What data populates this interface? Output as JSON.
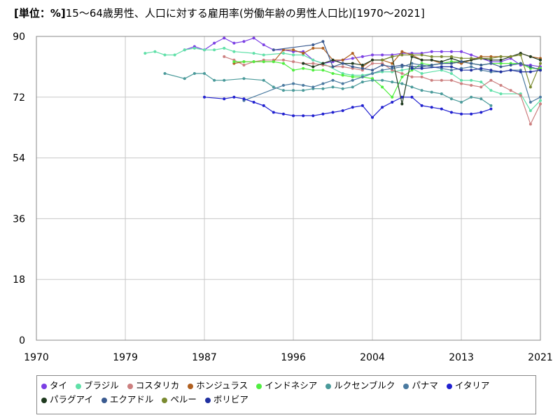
{
  "chart_data": {
    "type": "line",
    "unit": "[単位：%]",
    "title": "15～64歳男性、人口に対する雇用率(労働年齢の男性人口比)[1970～2021]",
    "xlim": [
      1970,
      2021
    ],
    "ylim": [
      0,
      90
    ],
    "x_ticks": [
      "1970",
      "1979",
      "1987",
      "1996",
      "2004",
      "2013",
      "2021"
    ],
    "y_ticks": [
      "0",
      "18",
      "36",
      "54",
      "72",
      "90"
    ],
    "grid": true,
    "legend_position": "bottom",
    "series": [
      {
        "name": "タイ",
        "color": "#7b3fe4",
        "x": [
          1985,
          1986,
          1987,
          1988,
          1989,
          1990,
          1991,
          1992,
          1993,
          1994,
          1995,
          1996,
          1997,
          1998,
          1999,
          2000,
          2001,
          2002,
          2003,
          2004,
          2005,
          2006,
          2007,
          2008,
          2009,
          2010,
          2011,
          2012,
          2013,
          2014,
          2015,
          2016,
          2017,
          2018,
          2019,
          2020,
          2021
        ],
        "values": [
          86,
          87,
          86,
          88,
          89.5,
          88,
          88.5,
          89.5,
          87.5,
          86,
          86,
          85.5,
          85.5,
          83,
          82,
          82.5,
          83,
          83.5,
          84,
          84.5,
          84.5,
          84.5,
          85,
          85,
          85,
          85.5,
          85.5,
          85.5,
          85.5,
          84.5,
          83.5,
          82.5,
          82.5,
          83.5,
          81.5,
          81.5,
          81
        ]
      },
      {
        "name": "ブラジル",
        "color": "#60e0a8",
        "x": [
          1981,
          1982,
          1983,
          1984,
          1985,
          1986,
          1987,
          1988,
          1989,
          1990,
          1992,
          1993,
          1995,
          1996,
          1997,
          1998,
          1999,
          2001,
          2002,
          2003,
          2004,
          2005,
          2006,
          2007,
          2008,
          2009,
          2011,
          2012,
          2013,
          2014,
          2015,
          2016,
          2017,
          2019,
          2020,
          2021
        ],
        "values": [
          85,
          85.5,
          84.5,
          84.5,
          86,
          86.5,
          86,
          86,
          86.5,
          85.5,
          85,
          84.5,
          85,
          84.5,
          84.5,
          83,
          82,
          79,
          78.5,
          78.5,
          79,
          79.5,
          79.5,
          80,
          80.5,
          79,
          80,
          79,
          77,
          77,
          76.5,
          74,
          73,
          73,
          68,
          71
        ]
      },
      {
        "name": "コスタリカ",
        "color": "#cc7f7f",
        "x": [
          1989,
          1990,
          1991,
          1992,
          1993,
          1994,
          1995,
          1996,
          1997,
          1998,
          1999,
          2000,
          2001,
          2002,
          2003,
          2004,
          2005,
          2006,
          2007,
          2008,
          2009,
          2010,
          2011,
          2012,
          2013,
          2014,
          2015,
          2016,
          2017,
          2018,
          2019,
          2020,
          2021
        ],
        "values": [
          84,
          83,
          81.5,
          82.5,
          83,
          83,
          83,
          82.5,
          82,
          82,
          81.5,
          81,
          81,
          80.5,
          80,
          82,
          82,
          80,
          79,
          78,
          78,
          77,
          77,
          77,
          76,
          75.5,
          75,
          77,
          75.5,
          74,
          72.5,
          64,
          70
        ]
      },
      {
        "name": "ホンジュラス",
        "color": "#b06020",
        "x": [
          1990,
          1991,
          1992,
          1993,
          1994,
          1995,
          1996,
          1997,
          1998,
          1999,
          2000,
          2001,
          2002,
          2003,
          2004,
          2005,
          2006,
          2007,
          2008,
          2009,
          2010,
          2011,
          2012,
          2013,
          2014,
          2015,
          2016,
          2017,
          2018,
          2019,
          2020,
          2021
        ],
        "values": [
          82,
          82.5,
          82.5,
          82.5,
          82.5,
          86,
          86,
          85,
          86.5,
          86.5,
          83,
          83,
          85,
          81,
          83,
          83,
          82,
          85.5,
          84.5,
          83,
          83,
          82,
          82.5,
          82,
          83,
          84,
          84,
          84,
          84,
          85,
          84,
          83.5
        ]
      },
      {
        "name": "インドネシア",
        "color": "#50ee40",
        "x": [
          1990,
          1991,
          1992,
          1993,
          1994,
          1995,
          1996,
          1997,
          1998,
          1999,
          2000,
          2001,
          2002,
          2003,
          2004,
          2005,
          2006,
          2007,
          2008,
          2009,
          2010,
          2011,
          2012,
          2013,
          2014,
          2015,
          2016,
          2017,
          2018,
          2019,
          2020,
          2021
        ],
        "values": [
          82.5,
          82.5,
          82.5,
          82.5,
          82.5,
          82,
          80,
          80.5,
          80,
          80,
          79,
          78.5,
          78,
          78,
          77.5,
          75,
          72,
          78,
          80,
          82,
          81.5,
          82,
          82.5,
          82.5,
          82,
          81.5,
          82,
          82,
          82,
          82,
          80.5,
          80.5
        ]
      },
      {
        "name": "ルクセンブルク",
        "color": "#4a9a9a",
        "x": [
          1983,
          1985,
          1986,
          1987,
          1988,
          1989,
          1991,
          1993,
          1994,
          1995,
          1996,
          1997,
          1998,
          1999,
          2000,
          2001,
          2002,
          2003,
          2004,
          2005,
          2006,
          2007,
          2008,
          2009,
          2010,
          2011,
          2012,
          2013,
          2014,
          2015,
          2016
        ],
        "values": [
          79,
          77.5,
          79,
          79,
          77,
          77,
          77.5,
          77,
          75,
          74,
          74,
          74,
          74.5,
          74.5,
          75,
          74.5,
          75,
          76.5,
          77,
          77,
          76.5,
          76,
          75,
          74,
          73.5,
          73,
          71.5,
          70.5,
          72,
          71.5,
          69.5
        ]
      },
      {
        "name": "パナマ",
        "color": "#4a7aa0",
        "x": [
          1991,
          1995,
          1996,
          1997,
          1998,
          1999,
          2000,
          2001,
          2002,
          2003,
          2004,
          2005,
          2006,
          2007,
          2008,
          2009,
          2010,
          2011,
          2012,
          2013,
          2014,
          2015,
          2016,
          2017,
          2018,
          2019,
          2020,
          2021
        ],
        "values": [
          71,
          75.5,
          76,
          75.5,
          75,
          76,
          77,
          76,
          77,
          78,
          79,
          80,
          80.5,
          81,
          82,
          81.5,
          81,
          80.5,
          80,
          80.5,
          81,
          80,
          79.5,
          79.5,
          80,
          80,
          70.5,
          72
        ]
      },
      {
        "name": "イタリア",
        "color": "#2020d0",
        "x": [
          1987,
          1989,
          1990,
          1991,
          1992,
          1993,
          1994,
          1995,
          1996,
          1997,
          1998,
          1999,
          2000,
          2001,
          2002,
          2003,
          2004,
          2005,
          2006,
          2007,
          2008,
          2009,
          2010,
          2011,
          2012,
          2013,
          2014,
          2015,
          2016
        ],
        "values": [
          72,
          71.5,
          72,
          71.5,
          70.5,
          69.5,
          67.5,
          67,
          66.5,
          66.5,
          66.5,
          67,
          67.5,
          68,
          69,
          69.5,
          66,
          69,
          70.5,
          72,
          72,
          69.5,
          69,
          68.5,
          67.5,
          67,
          67,
          67.5,
          68.5
        ]
      },
      {
        "name": "パラグアイ",
        "color": "#1f3a1f",
        "x": [
          1997,
          1998,
          1999,
          2000,
          2001,
          2002,
          2003,
          2004,
          2005,
          2006,
          2007,
          2008,
          2009,
          2010,
          2011,
          2012,
          2013,
          2014,
          2015,
          2016,
          2017,
          2018,
          2019,
          2020,
          2021
        ],
        "values": [
          82,
          81,
          82,
          83,
          82,
          82,
          81.5,
          83,
          83,
          84,
          70,
          84,
          83,
          83,
          82.5,
          83.5,
          82.5,
          83,
          83.5,
          83,
          83,
          84,
          85,
          84,
          83
        ]
      },
      {
        "name": "エクアドル",
        "color": "#3a5a90",
        "x": [
          1994,
          1998,
          1999,
          2000,
          2001,
          2002,
          2003,
          2004,
          2005,
          2006,
          2007,
          2008,
          2009,
          2010,
          2011,
          2012,
          2013,
          2014,
          2015,
          2016,
          2017,
          2018,
          2019,
          2020,
          2021
        ],
        "values": [
          86,
          87.5,
          88.5,
          81,
          82,
          81,
          80.5,
          80,
          81.5,
          81,
          81.5,
          81,
          81,
          81.5,
          82,
          82,
          82.5,
          82,
          81.5,
          82,
          81,
          81.5,
          82,
          81,
          80
        ]
      },
      {
        "name": "ペルー",
        "color": "#7a8a30",
        "x": [
          2005,
          2006,
          2007,
          2008,
          2009,
          2010,
          2011,
          2012,
          2013,
          2014,
          2015,
          2016,
          2017,
          2018,
          2019,
          2020,
          2021
        ],
        "values": [
          83,
          84,
          84.5,
          84.5,
          84.5,
          84,
          84,
          84,
          83.5,
          83.5,
          83.5,
          83.5,
          84,
          84,
          84.5,
          75,
          82
        ]
      },
      {
        "name": "ボリビア",
        "color": "#2030a0",
        "x": [
          2008,
          2009,
          2011,
          2012,
          2013,
          2014,
          2015,
          2016,
          2017,
          2018,
          2019,
          2020,
          2021
        ],
        "values": [
          80.5,
          80.5,
          81,
          81,
          80,
          80,
          80.5,
          80,
          79.5,
          80,
          79.5,
          79.5,
          80
        ]
      }
    ]
  }
}
